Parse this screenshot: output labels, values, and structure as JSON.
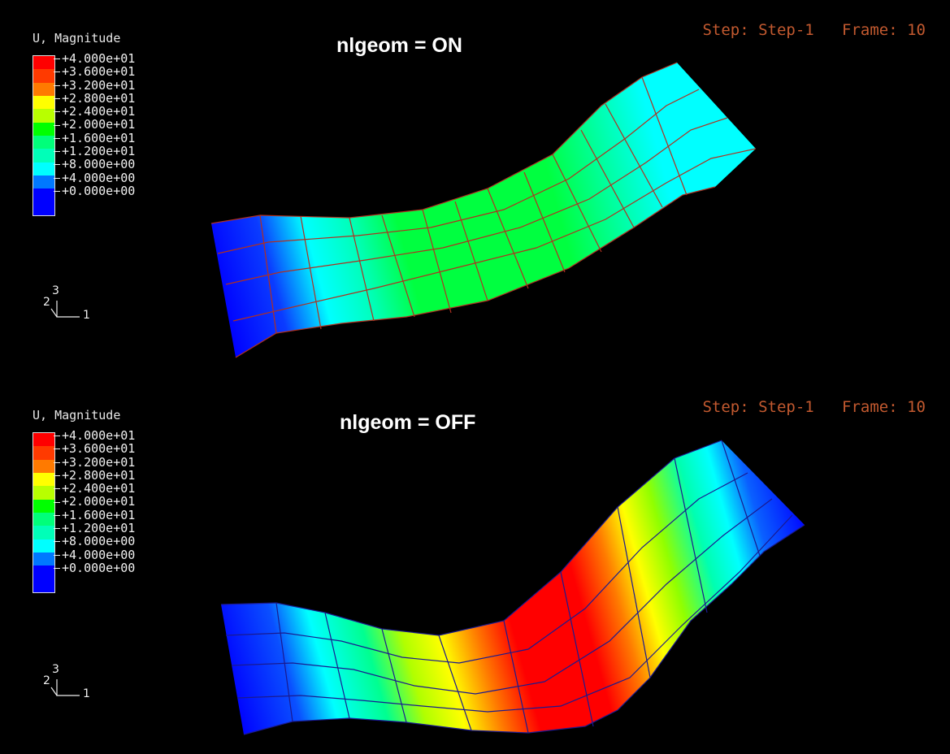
{
  "viewports": [
    {
      "plot_title": "nlgeom = ON",
      "legend_title": "U, Magnitude",
      "legend_labels": [
        "+4.000e+01",
        "+3.600e+01",
        "+3.200e+01",
        "+2.800e+01",
        "+2.400e+01",
        "+2.000e+01",
        "+1.600e+01",
        "+1.200e+01",
        "+8.000e+00",
        "+4.000e+00",
        "+0.000e+00"
      ],
      "step_label": "Step: Step-1",
      "frame_label": "Frame: 10",
      "triad": {
        "axis_3": "3",
        "axis_2": "2",
        "axis_1": "1"
      }
    },
    {
      "plot_title": "nlgeom = OFF",
      "legend_title": "U, Magnitude",
      "legend_labels": [
        "+4.000e+01",
        "+3.600e+01",
        "+3.200e+01",
        "+2.800e+01",
        "+2.400e+01",
        "+2.000e+01",
        "+1.600e+01",
        "+1.200e+01",
        "+8.000e+00",
        "+4.000e+00",
        "+0.000e+00"
      ],
      "step_label": "Step: Step-1",
      "frame_label": "Frame: 10",
      "triad": {
        "axis_3": "3",
        "axis_2": "2",
        "axis_1": "1"
      }
    }
  ],
  "legend_colors": [
    "#ff0000",
    "#ff3a00",
    "#ff7a00",
    "#ffff00",
    "#b8ff00",
    "#00ff00",
    "#00ff7a",
    "#00ffb8",
    "#00ffff",
    "#0078ff",
    "#0000ff",
    "#0000ff"
  ],
  "colors": {
    "background": "#000000",
    "step_frame_text": "#c2592f",
    "mesh_line_on": "#b03020",
    "mesh_line_off": "#1a1a80"
  }
}
